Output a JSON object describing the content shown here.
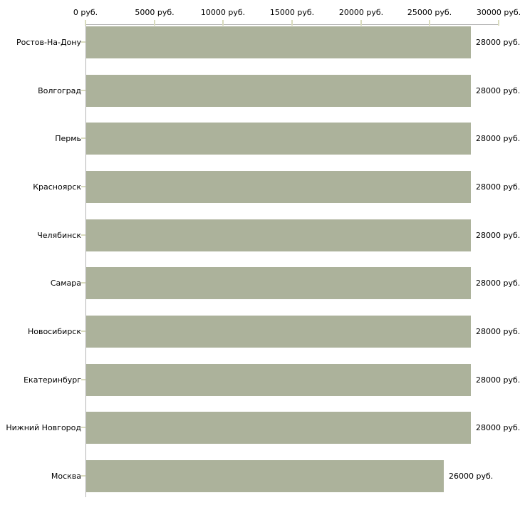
{
  "chart_data": {
    "type": "bar",
    "orientation": "horizontal",
    "title": "",
    "categories": [
      "Ростов-На-Дону",
      "Волгоград",
      "Пермь",
      "Красноярск",
      "Челябинск",
      "Самара",
      "Новосибирск",
      "Екатеринбург",
      "Нижний Новгород",
      "Москва"
    ],
    "values": [
      28000,
      28000,
      28000,
      28000,
      28000,
      28000,
      28000,
      28000,
      28000,
      26000
    ],
    "value_labels": [
      "28000 руб.",
      "28000 руб.",
      "28000 руб.",
      "28000 руб.",
      "28000 руб.",
      "28000 руб.",
      "28000 руб.",
      "28000 руб.",
      "28000 руб.",
      "26000 руб."
    ],
    "unit": "руб.",
    "x_axis": {
      "position": "top",
      "min": 0,
      "max": 30000,
      "tick_values": [
        0,
        5000,
        10000,
        15000,
        20000,
        25000,
        30000
      ],
      "tick_labels": [
        "0 руб.",
        "5000 руб.",
        "10000 руб.",
        "15000 руб.",
        "20000 руб.",
        "25000 руб.",
        "30000 руб."
      ]
    },
    "grid": false,
    "legend": null,
    "colors": {
      "bar": "#acb29b",
      "axis_line": "#b4b4b4",
      "tick_mark": "#d9dbbd",
      "text": "#000000",
      "background": "#ffffff"
    }
  }
}
